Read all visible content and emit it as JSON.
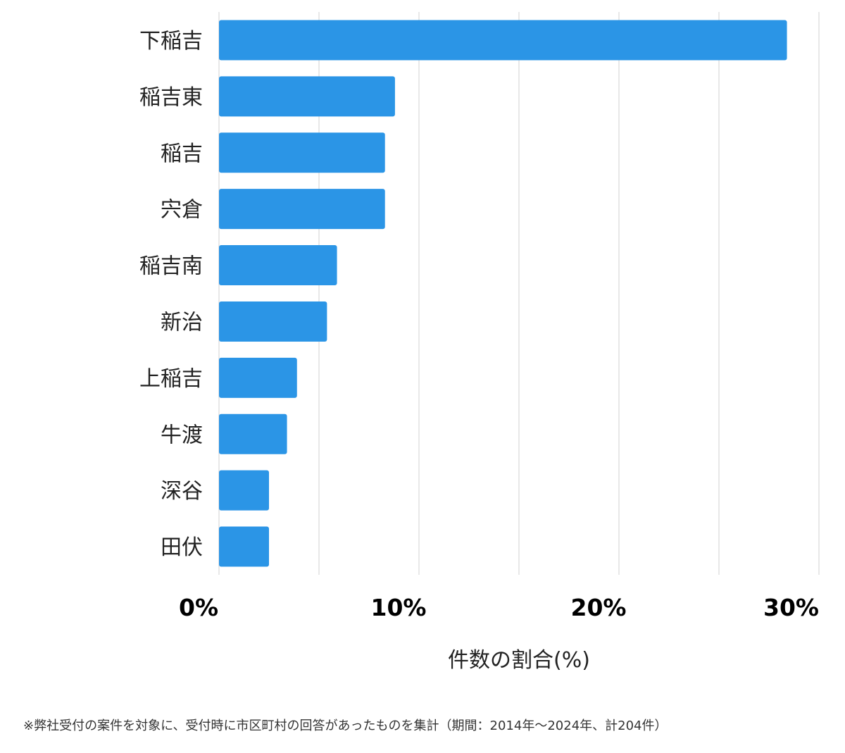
{
  "chart_data": {
    "type": "bar",
    "orientation": "horizontal",
    "categories": [
      "下稲吉",
      "稲吉東",
      "稲吉",
      "宍倉",
      "稲吉南",
      "新治",
      "上稲吉",
      "牛渡",
      "深谷",
      "田伏"
    ],
    "values": [
      28.4,
      8.8,
      8.3,
      8.3,
      5.9,
      5.4,
      3.9,
      3.4,
      2.5,
      2.5
    ],
    "xlim": [
      0,
      30
    ],
    "xticks": [
      0,
      10,
      20,
      30
    ],
    "xtick_labels": [
      "0%",
      "10%",
      "20%",
      "30%"
    ],
    "xlabel": "件数の割合(%)",
    "ylabel": "",
    "title": "",
    "grid": true,
    "bar_color": "#2b95e6"
  },
  "footnote": "※弊社受付の案件を対象に、受付時に市区町村の回答があったものを集計（期間：2014年～2024年、計204件）"
}
